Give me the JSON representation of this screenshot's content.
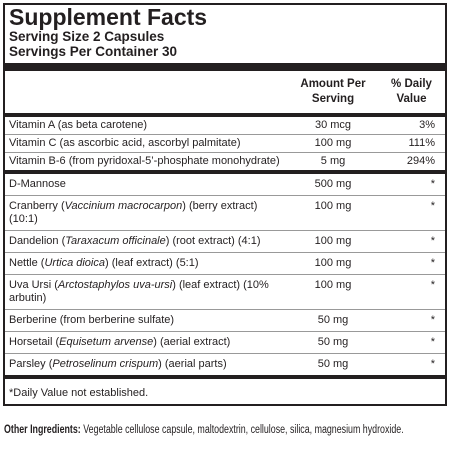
{
  "header": {
    "title": "Supplement Facts",
    "serving_size": "Serving Size 2 Capsules",
    "servings_per_container": "Servings Per Container 30"
  },
  "table": {
    "columns": [
      "Amount Per Serving",
      "% Daily Value"
    ],
    "groups": [
      [
        {
          "name": [
            "Vitamin A (as beta carotene)"
          ],
          "amount": "30 mcg",
          "dv": "3%"
        },
        {
          "name": [
            "Vitamin C (as ascorbic acid, ascorbyl palmitate)"
          ],
          "amount": "100 mg",
          "dv": "111%"
        },
        {
          "name": [
            "Vitamin B-6 (from pyridoxal-5’-phosphate monohydrate)"
          ],
          "amount": "5 mg",
          "dv": "294%"
        }
      ],
      [
        {
          "name": [
            "D-Mannose"
          ],
          "amount": "500 mg",
          "dv": "*"
        },
        {
          "name": [
            "Cranberry (",
            "Vaccinium macrocarpon",
            ") (berry extract) (10:1)"
          ],
          "amount": "100 mg",
          "dv": "*"
        },
        {
          "name": [
            "Dandelion (",
            "Taraxacum officinale",
            ") (root extract) (4:1)"
          ],
          "amount": "100 mg",
          "dv": "*"
        },
        {
          "name": [
            "Nettle (",
            "Urtica dioica",
            ") (leaf extract) (5:1)"
          ],
          "amount": "100 mg",
          "dv": "*"
        },
        {
          "name": [
            "Uva Ursi (",
            "Arctostaphylos uva-ursi",
            ") (leaf extract) (10% arbutin)"
          ],
          "amount": "100 mg",
          "dv": "*"
        },
        {
          "name": [
            "Berberine (from berberine sulfate)"
          ],
          "amount": "50 mg",
          "dv": "*"
        },
        {
          "name": [
            "Horsetail (",
            "Equisetum arvense",
            ") (aerial extract)"
          ],
          "amount": "50 mg",
          "dv": "*"
        },
        {
          "name": [
            "Parsley (",
            "Petroselinum crispum",
            ") (aerial parts)"
          ],
          "amount": "50 mg",
          "dv": "*"
        }
      ]
    ],
    "footnote": "*Daily Value not established."
  },
  "other_ingredients": {
    "label": "Other Ingredients:",
    "text": "Vegetable cellulose capsule, maltodextrin, cellulose, silica, magnesium hydroxide."
  }
}
